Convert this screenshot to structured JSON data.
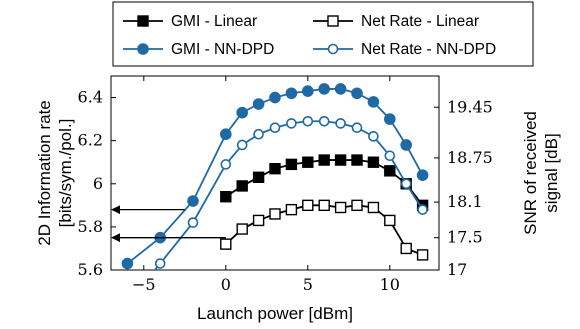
{
  "chart_data": {
    "type": "line",
    "xlabel": "Launch power [dBm]",
    "ylabel_left": [
      "2D Information rate",
      "[bits/sym./pol.]"
    ],
    "ylabel_right": [
      "SNR of received",
      "signal [dB]"
    ],
    "xlim": [
      -7,
      13
    ],
    "ylim": [
      5.6,
      6.5
    ],
    "x_ticks": [
      -5,
      0,
      5,
      10
    ],
    "x_tick_labels": [
      "−5",
      "0",
      "5",
      "10"
    ],
    "y_ticks": [
      5.6,
      5.8,
      6.0,
      6.2,
      6.4
    ],
    "y_tick_labels": [
      "5.6",
      "5.8",
      "6",
      "6.2",
      "6.4"
    ],
    "y2_ticks": [
      5.6,
      5.75,
      5.915,
      6.12,
      6.355
    ],
    "y2_tick_labels": [
      "17",
      "17.5",
      "18.1",
      "18.75",
      "19.45"
    ],
    "legend": {
      "placement": "top",
      "entries": [
        {
          "label": "GMI - Linear",
          "series": 0
        },
        {
          "label": "Net Rate - Linear",
          "series": 1
        },
        {
          "label": "GMI - NN-DPD",
          "series": 2
        },
        {
          "label": "Net Rate - NN-DPD",
          "series": 3
        }
      ]
    },
    "series": [
      {
        "name": "GMI - Linear",
        "color": "#000000",
        "marker": "square-filled",
        "x": [
          0,
          1,
          2,
          3,
          4,
          5,
          6,
          7,
          8,
          9,
          10,
          11,
          12
        ],
        "y": [
          5.94,
          5.99,
          6.03,
          6.07,
          6.09,
          6.1,
          6.11,
          6.11,
          6.11,
          6.1,
          6.06,
          6.0,
          5.9
        ]
      },
      {
        "name": "Net Rate - Linear",
        "color": "#000000",
        "marker": "square-open",
        "x": [
          0,
          1,
          2,
          3,
          4,
          5,
          6,
          7,
          8,
          9,
          10,
          11,
          12
        ],
        "y": [
          5.72,
          5.79,
          5.83,
          5.86,
          5.88,
          5.9,
          5.9,
          5.89,
          5.9,
          5.89,
          5.83,
          5.7,
          5.67
        ]
      },
      {
        "name": "GMI - NN-DPD",
        "color": "#1f6aa5",
        "marker": "circle-filled",
        "x": [
          -6,
          -4,
          -2,
          0,
          1,
          2,
          3,
          4,
          5,
          6,
          7,
          8,
          9,
          10,
          11,
          12
        ],
        "y": [
          5.63,
          5.75,
          5.92,
          6.23,
          6.33,
          6.37,
          6.4,
          6.42,
          6.43,
          6.44,
          6.44,
          6.42,
          6.38,
          6.3,
          6.18,
          6.04
        ]
      },
      {
        "name": "Net Rate - NN-DPD",
        "color": "#1f6aa5",
        "marker": "circle-open",
        "x": [
          -6,
          -4,
          -2,
          0,
          1,
          2,
          3,
          4,
          5,
          6,
          7,
          8,
          9,
          10,
          11,
          12
        ],
        "y": [
          5.45,
          5.63,
          5.82,
          6.09,
          6.18,
          6.23,
          6.26,
          6.28,
          6.29,
          6.29,
          6.28,
          6.26,
          6.22,
          6.13,
          6.0,
          5.88
        ]
      }
    ],
    "annotations": [
      {
        "type": "arrow",
        "from": [
          -2.5,
          5.88
        ],
        "to": [
          -7,
          5.88
        ]
      },
      {
        "type": "arrow",
        "from": [
          0,
          5.75
        ],
        "to": [
          -7,
          5.75
        ]
      }
    ]
  }
}
